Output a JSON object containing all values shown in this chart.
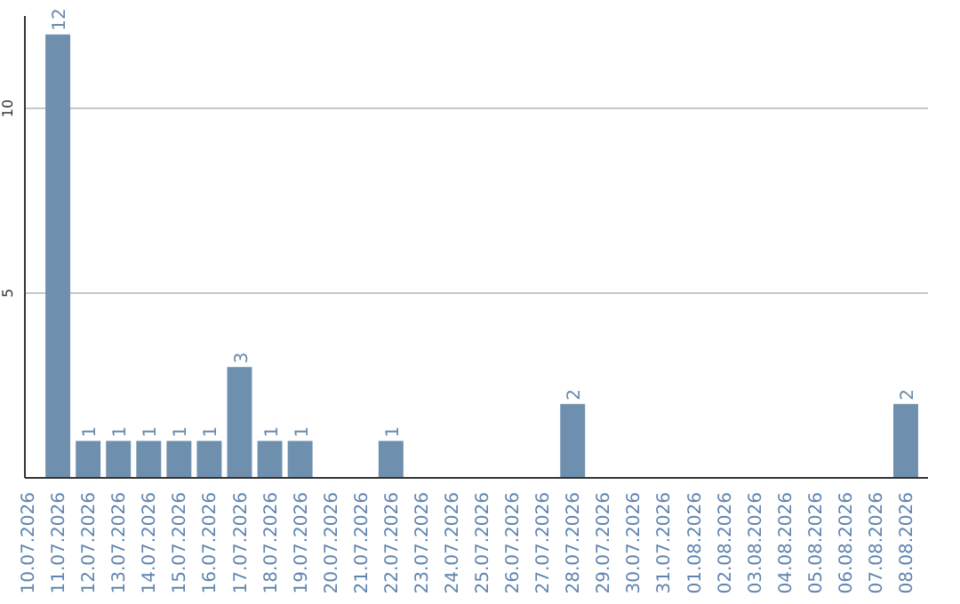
{
  "chart_data": {
    "type": "bar",
    "categories": [
      "10.07.2026",
      "11.07.2026",
      "12.07.2026",
      "13.07.2026",
      "14.07.2026",
      "15.07.2026",
      "16.07.2026",
      "17.07.2026",
      "18.07.2026",
      "19.07.2026",
      "20.07.2026",
      "21.07.2026",
      "22.07.2026",
      "23.07.2026",
      "24.07.2026",
      "25.07.2026",
      "26.07.2026",
      "27.07.2026",
      "28.07.2026",
      "29.07.2026",
      "30.07.2026",
      "31.07.2026",
      "01.08.2026",
      "02.08.2026",
      "03.08.2026",
      "04.08.2026",
      "05.08.2026",
      "06.08.2026",
      "07.08.2026",
      "08.08.2026"
    ],
    "values": [
      0,
      12,
      1,
      1,
      1,
      1,
      1,
      3,
      1,
      1,
      0,
      0,
      1,
      0,
      0,
      0,
      0,
      0,
      2,
      0,
      0,
      0,
      0,
      0,
      0,
      0,
      0,
      0,
      0,
      2
    ],
    "value_labels": [
      null,
      "12",
      "1",
      "1",
      "1",
      "1",
      "1",
      "3",
      "1",
      "1",
      null,
      null,
      "1",
      null,
      null,
      null,
      null,
      null,
      "2",
      null,
      null,
      null,
      null,
      null,
      null,
      null,
      null,
      null,
      null,
      "2"
    ],
    "color": "#6f8fae",
    "ylim": [
      0,
      12.5
    ],
    "yticks": [
      5,
      10
    ],
    "grid": "y"
  }
}
